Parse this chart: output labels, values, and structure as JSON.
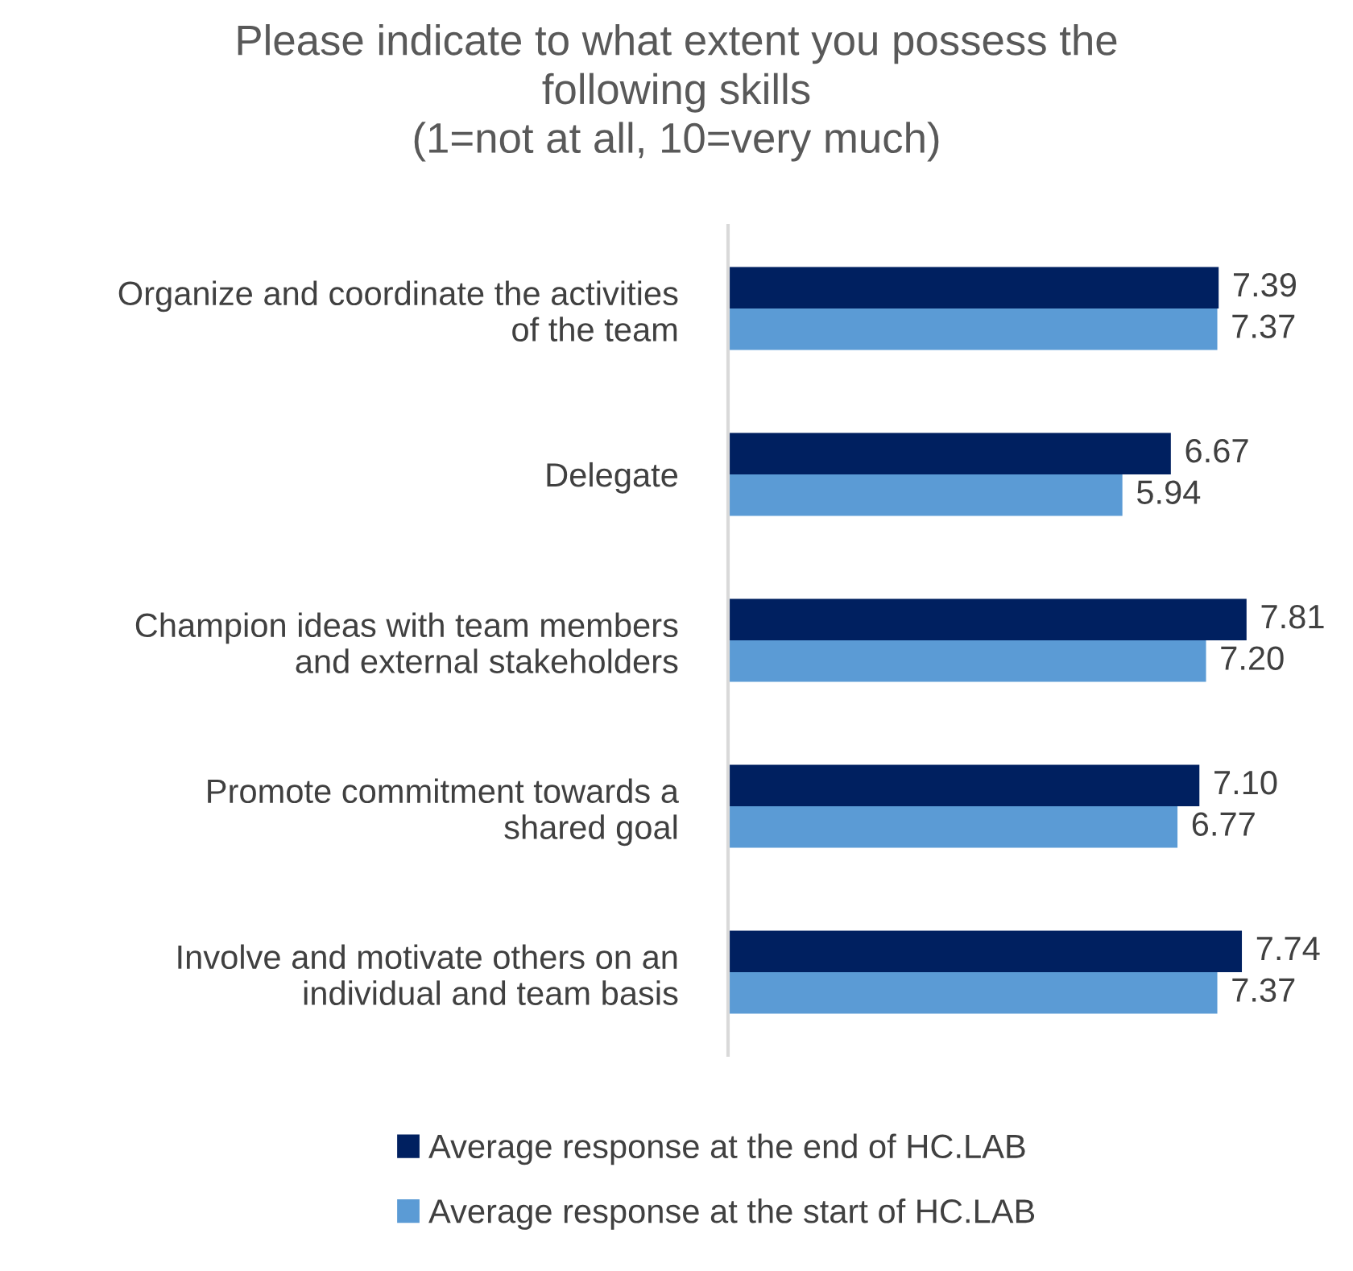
{
  "chart_data": {
    "type": "bar",
    "orientation": "horizontal",
    "title": "Please indicate to what extent you possess the\nfollowing skills\n(1=not at all, 10=very much)",
    "categories": [
      "Organize and coordinate the activities\nof the team",
      "Delegate",
      "Champion ideas with team members\nand external stakeholders",
      "Promote commitment towards a\nshared goal",
      "Involve and motivate others on an\nindividual and team basis"
    ],
    "series": [
      {
        "name": "Average response at the end of HC.LAB",
        "color": "#002060",
        "values": [
          7.39,
          6.67,
          7.81,
          7.1,
          7.74
        ],
        "value_labels": [
          "7.39",
          "6.67",
          "7.81",
          "7.10",
          "7.74"
        ]
      },
      {
        "name": "Average response at the start of HC.LAB",
        "color": "#5b9bd5",
        "values": [
          7.37,
          5.94,
          7.2,
          6.77,
          7.37
        ],
        "value_labels": [
          "7.37",
          "5.94",
          "7.20",
          "6.77",
          "7.37"
        ]
      }
    ],
    "tick_labels": "y",
    "legend": "bottom",
    "grid": false
  }
}
